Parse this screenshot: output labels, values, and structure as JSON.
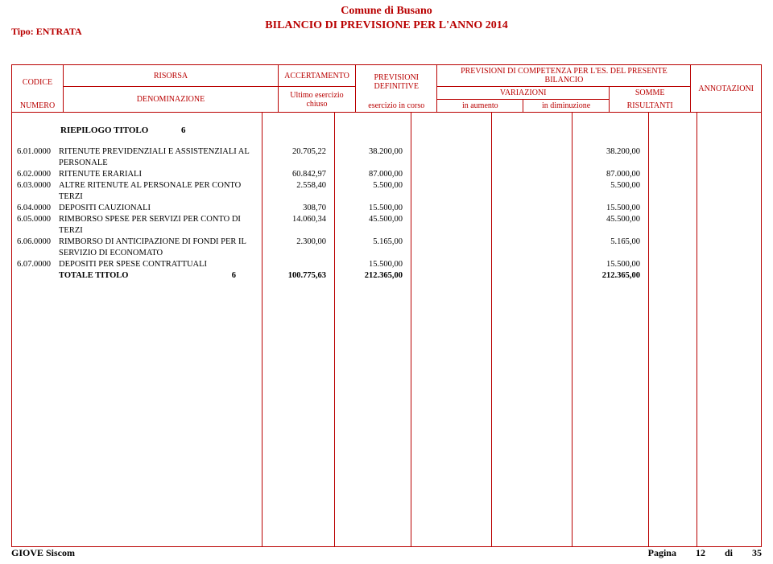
{
  "title": "Comune di Busano",
  "subtitle": "BILANCIO DI PREVISIONE PER L'ANNO 2014",
  "tipo": "Tipo: ENTRATA",
  "colors": {
    "accent": "#b90000",
    "text": "#000000",
    "background": "#ffffff"
  },
  "header": {
    "codice": "CODICE",
    "numero": "NUMERO",
    "risorsa": "RISORSA",
    "denominazione": "DENOMINAZIONE",
    "accertamento": "ACCERTAMENTO",
    "ultimo_esercizio": "Ultimo esercizio",
    "chiuso": "chiuso",
    "previsioni": "PREVISIONI",
    "definitive": "DEFINITIVE",
    "esercizio_in_corso": "esercizio in corso",
    "competenza": "PREVISIONI DI COMPETENZA PER L'ES. DEL PRESENTE BILANCIO",
    "variazioni": "VARIAZIONI",
    "in_aumento": "in aumento",
    "in_diminuzione": "in diminuzione",
    "somme": "SOMME",
    "risultanti": "RISULTANTI",
    "annotazioni": "ANNOTAZIONI"
  },
  "riepilogo": {
    "label": "RIEPILOGO  TITOLO",
    "num": "6"
  },
  "rows": [
    {
      "code": "6.01.0000",
      "desc": "RITENUTE PREVIDENZIALI E ASSISTENZIALI AL PERSONALE",
      "acc": "20.705,22",
      "prev": "38.200,00",
      "somme": "38.200,00"
    },
    {
      "code": "6.02.0000",
      "desc": "RITENUTE ERARIALI",
      "acc": "60.842,97",
      "prev": "87.000,00",
      "somme": "87.000,00"
    },
    {
      "code": "6.03.0000",
      "desc": "ALTRE RITENUTE AL PERSONALE PER CONTO TERZI",
      "acc": "2.558,40",
      "prev": "5.500,00",
      "somme": "5.500,00"
    },
    {
      "code": "6.04.0000",
      "desc": "DEPOSITI CAUZIONALI",
      "acc": "308,70",
      "prev": "15.500,00",
      "somme": "15.500,00"
    },
    {
      "code": "6.05.0000",
      "desc": "RIMBORSO SPESE PER SERVIZI PER CONTO DI TERZI",
      "acc": "14.060,34",
      "prev": "45.500,00",
      "somme": "45.500,00"
    },
    {
      "code": "6.06.0000",
      "desc": "RIMBORSO DI ANTICIPAZIONE DI FONDI PER IL SERVIZIO DI ECONOMATO",
      "acc": "2.300,00",
      "prev": "5.165,00",
      "somme": "5.165,00"
    },
    {
      "code": "6.07.0000",
      "desc": "DEPOSITI PER SPESE CONTRATTUALI",
      "acc": "",
      "prev": "15.500,00",
      "somme": "15.500,00"
    }
  ],
  "total": {
    "label": "TOTALE TITOLO",
    "num": "6",
    "acc": "100.775,63",
    "prev": "212.365,00",
    "somme": "212.365,00"
  },
  "footer": {
    "left": "GIOVE Siscom",
    "pagina_label": "Pagina",
    "pagina_num": "12",
    "di": "di",
    "pagina_tot": "35"
  }
}
